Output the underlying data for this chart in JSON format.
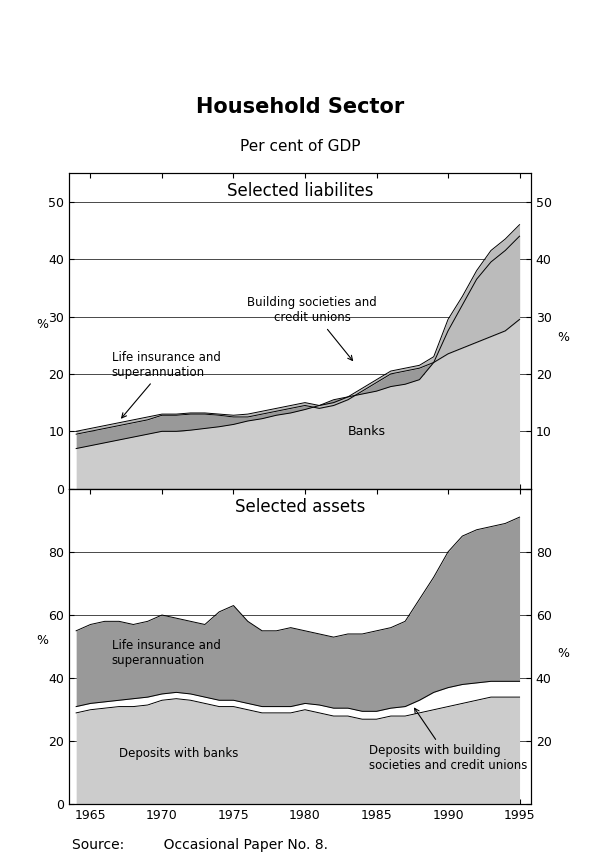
{
  "title": "Household Sector",
  "subtitle": "Per cent of GDP",
  "source_text": "Source:         Occasional Paper No. 8.",
  "years": [
    1964,
    1965,
    1966,
    1967,
    1968,
    1969,
    1970,
    1971,
    1972,
    1973,
    1974,
    1975,
    1976,
    1977,
    1978,
    1979,
    1980,
    1981,
    1982,
    1983,
    1984,
    1985,
    1986,
    1987,
    1988,
    1989,
    1990,
    1991,
    1992,
    1993,
    1994,
    1995
  ],
  "liab_banks": [
    7.0,
    7.5,
    8.0,
    8.5,
    9.0,
    9.5,
    10.0,
    10.0,
    10.2,
    10.5,
    10.8,
    11.2,
    11.8,
    12.2,
    12.8,
    13.2,
    13.8,
    14.5,
    15.5,
    16.0,
    16.5,
    17.0,
    17.8,
    18.2,
    19.0,
    22.0,
    27.5,
    32.0,
    36.5,
    39.5,
    41.5,
    44.0
  ],
  "liab_life": [
    9.5,
    10.0,
    10.5,
    11.0,
    11.5,
    12.0,
    12.8,
    12.8,
    13.0,
    13.0,
    12.8,
    12.5,
    12.5,
    13.0,
    13.5,
    14.0,
    14.5,
    14.0,
    14.5,
    15.5,
    17.0,
    18.5,
    20.0,
    20.5,
    21.0,
    22.0,
    23.5,
    24.5,
    25.5,
    26.5,
    27.5,
    29.5
  ],
  "liab_building": [
    10.0,
    10.5,
    11.0,
    11.5,
    12.0,
    12.5,
    13.0,
    13.0,
    13.2,
    13.2,
    13.0,
    12.8,
    13.0,
    13.5,
    14.0,
    14.5,
    15.0,
    14.5,
    15.0,
    16.0,
    17.5,
    19.0,
    20.5,
    21.0,
    21.5,
    23.0,
    29.5,
    33.5,
    38.0,
    41.5,
    43.5,
    46.0
  ],
  "asset_deposits_banks": [
    29.0,
    30.0,
    30.5,
    31.0,
    31.0,
    31.5,
    33.0,
    33.5,
    33.0,
    32.0,
    31.0,
    31.0,
    30.0,
    29.0,
    29.0,
    29.0,
    30.0,
    29.0,
    28.0,
    28.0,
    27.0,
    27.0,
    28.0,
    28.0,
    29.0,
    30.0,
    31.0,
    32.0,
    33.0,
    34.0,
    34.0,
    34.0
  ],
  "asset_deposits_building": [
    31.0,
    32.0,
    32.5,
    33.0,
    33.5,
    34.0,
    35.0,
    35.5,
    35.0,
    34.0,
    33.0,
    33.0,
    32.0,
    31.0,
    31.0,
    31.0,
    32.0,
    31.5,
    30.5,
    30.5,
    29.5,
    29.5,
    30.5,
    31.0,
    33.0,
    35.5,
    37.0,
    38.0,
    38.5,
    39.0,
    39.0,
    39.0
  ],
  "asset_life": [
    55.0,
    57.0,
    58.0,
    58.0,
    57.0,
    58.0,
    60.0,
    59.0,
    58.0,
    57.0,
    61.0,
    63.0,
    58.0,
    55.0,
    55.0,
    56.0,
    55.0,
    54.0,
    53.0,
    54.0,
    54.0,
    55.0,
    56.0,
    58.0,
    65.0,
    72.0,
    80.0,
    85.0,
    87.0,
    88.0,
    89.0,
    91.0
  ],
  "liab_ylim": [
    0,
    55
  ],
  "liab_yticks": [
    0,
    10,
    20,
    30,
    40,
    50
  ],
  "asset_ylim": [
    0,
    100
  ],
  "asset_yticks": [
    0,
    20,
    40,
    60,
    80
  ],
  "xlim": [
    1963.5,
    1995.8
  ],
  "xticks": [
    1965,
    1970,
    1975,
    1980,
    1985,
    1990,
    1995
  ],
  "color_light_gray": "#cccccc",
  "color_dark_gray": "#999999",
  "color_white": "#ffffff",
  "panel1_title": "Selected liabilites",
  "panel2_title": "Selected assets"
}
